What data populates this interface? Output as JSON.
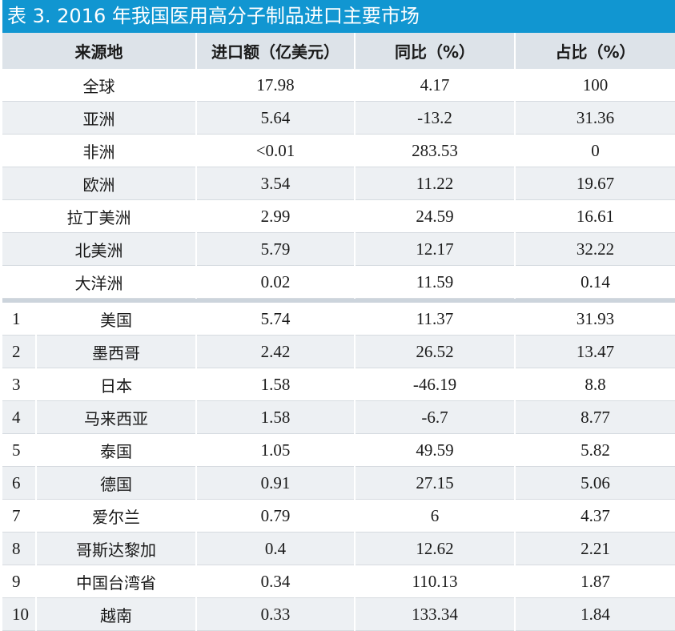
{
  "title": "表 3. 2016 年我国医用高分子制品进口主要市场",
  "headers": {
    "source": "来源地",
    "amount": "进口额（亿美元）",
    "yoy": "同比（%）",
    "share": "占比（%）"
  },
  "regions": [
    {
      "name": "全球",
      "amount": "17.98",
      "yoy": "4.17",
      "share": "100"
    },
    {
      "name": "亚洲",
      "amount": "5.64",
      "yoy": "-13.2",
      "share": "31.36"
    },
    {
      "name": "非洲",
      "amount": "<0.01",
      "yoy": "283.53",
      "share": "0"
    },
    {
      "name": "欧洲",
      "amount": "3.54",
      "yoy": "11.22",
      "share": "19.67"
    },
    {
      "name": "拉丁美洲",
      "amount": "2.99",
      "yoy": "24.59",
      "share": "16.61"
    },
    {
      "name": "北美洲",
      "amount": "5.79",
      "yoy": "12.17",
      "share": "32.22"
    },
    {
      "name": "大洋洲",
      "amount": "0.02",
      "yoy": "11.59",
      "share": "0.14"
    }
  ],
  "countries": [
    {
      "rank": "1",
      "name": "美国",
      "amount": "5.74",
      "yoy": "11.37",
      "share": "31.93"
    },
    {
      "rank": "2",
      "name": "墨西哥",
      "amount": "2.42",
      "yoy": "26.52",
      "share": "13.47"
    },
    {
      "rank": "3",
      "name": "日本",
      "amount": "1.58",
      "yoy": "-46.19",
      "share": "8.8"
    },
    {
      "rank": "4",
      "name": "马来西亚",
      "amount": "1.58",
      "yoy": "-6.7",
      "share": "8.77"
    },
    {
      "rank": "5",
      "name": "泰国",
      "amount": "1.05",
      "yoy": "49.59",
      "share": "5.82"
    },
    {
      "rank": "6",
      "name": "德国",
      "amount": "0.91",
      "yoy": "27.15",
      "share": "5.06"
    },
    {
      "rank": "7",
      "name": "爱尔兰",
      "amount": "0.79",
      "yoy": "6",
      "share": "4.37"
    },
    {
      "rank": "8",
      "name": "哥斯达黎加",
      "amount": "0.4",
      "yoy": "12.62",
      "share": "2.21"
    },
    {
      "rank": "9",
      "name": "中国台湾省",
      "amount": "0.34",
      "yoy": "110.13",
      "share": "1.87"
    },
    {
      "rank": "10",
      "name": "越南",
      "amount": "0.33",
      "yoy": "133.34",
      "share": "1.84"
    }
  ],
  "colors": {
    "title_bg": "#1196d1",
    "header_bg": "#dde3e9",
    "alt_row_bg": "#edf0f3",
    "separator": "#ccd4dc"
  }
}
